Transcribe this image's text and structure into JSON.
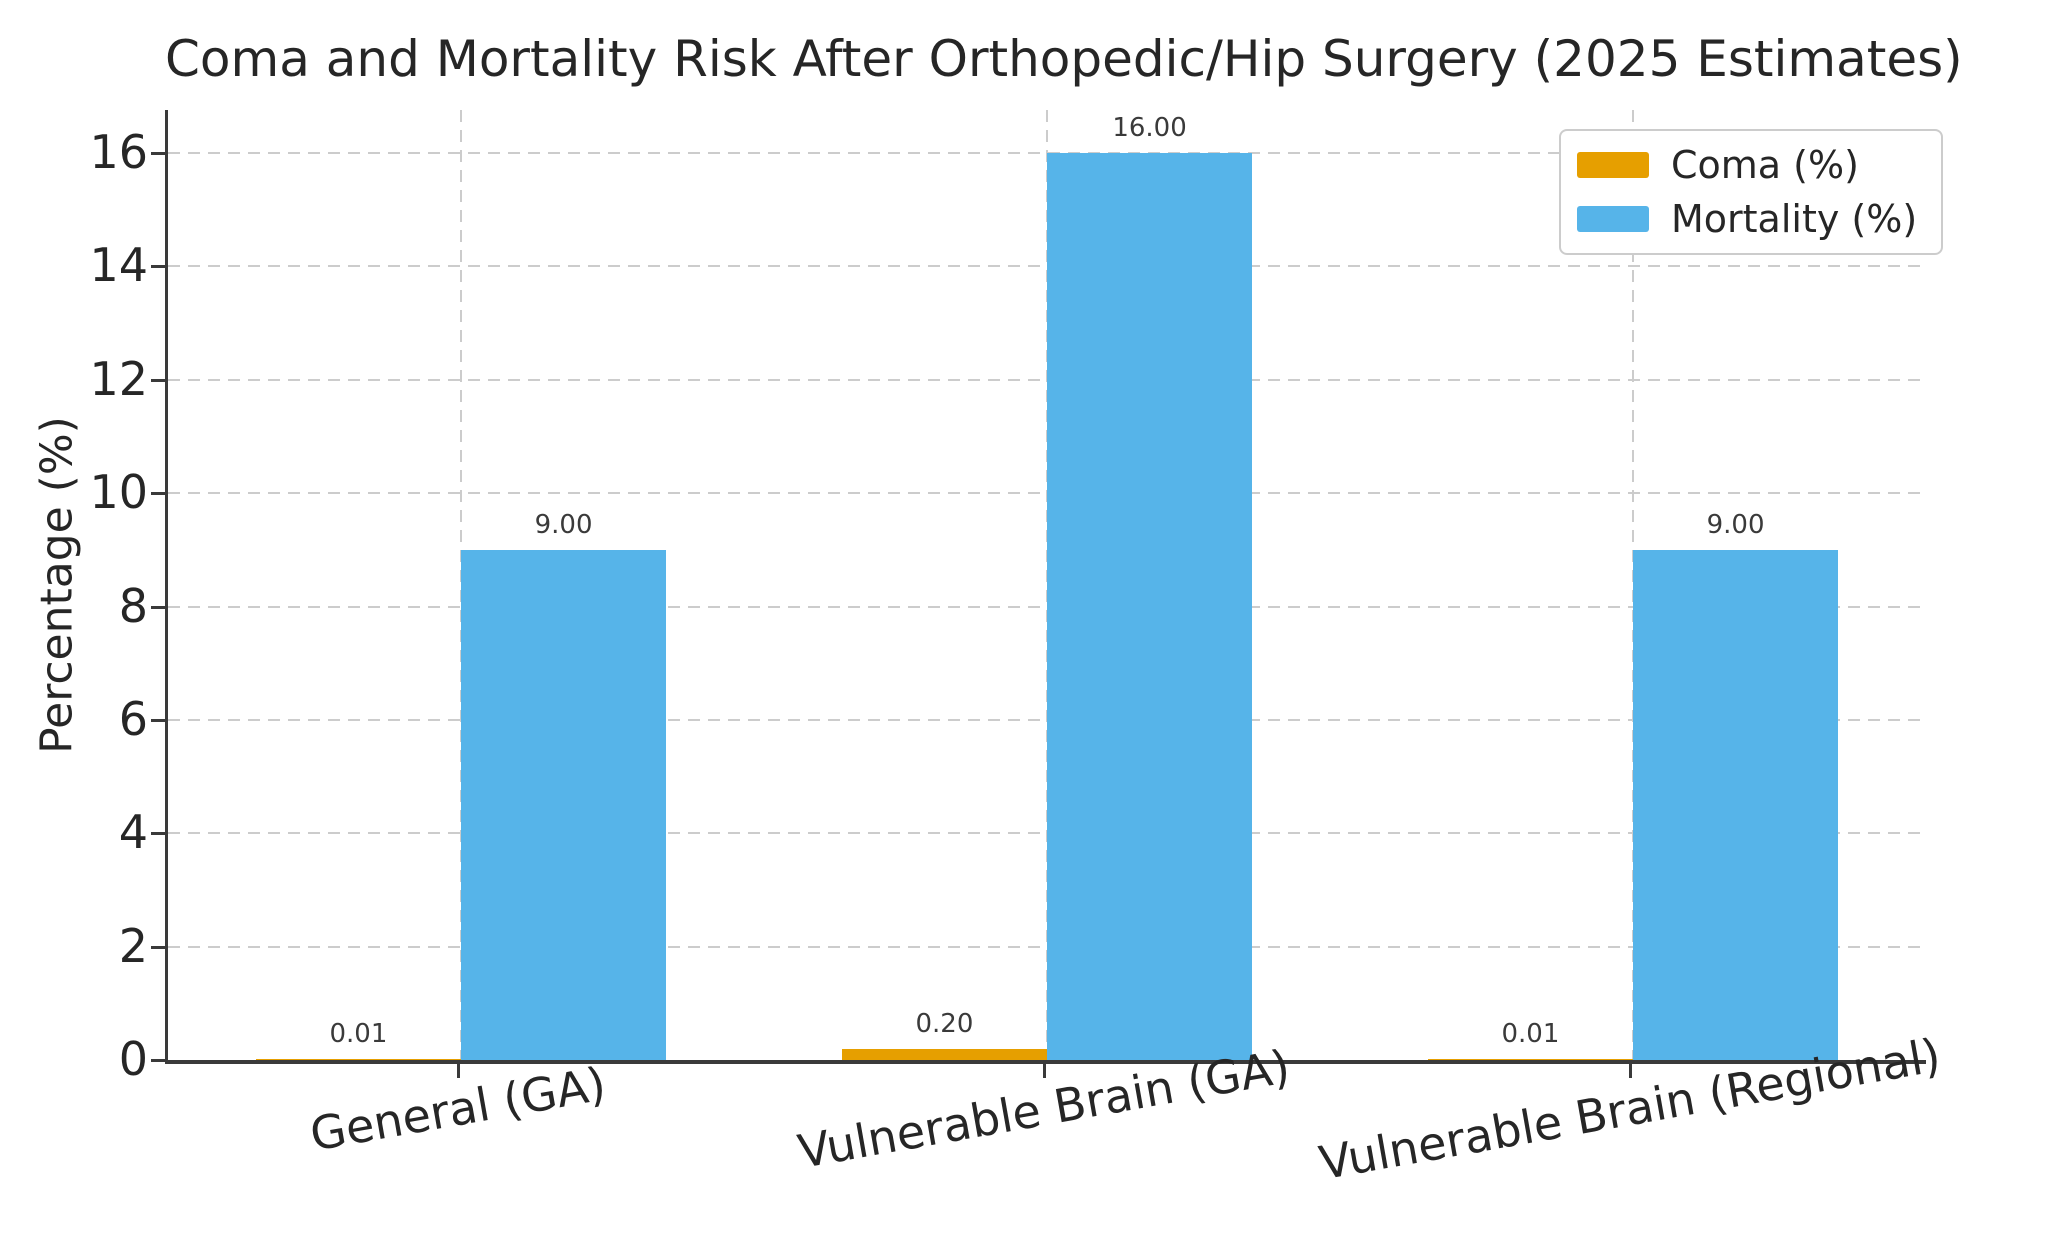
{
  "chart_data": {
    "type": "bar",
    "title": "Coma and Mortality Risk After Orthopedic/Hip Surgery (2025 Estimates)",
    "ylabel": "Percentage (%)",
    "xlabel": "",
    "categories": [
      "General (GA)",
      "Vulnerable Brain (GA)",
      "Vulnerable Brain (Regional)"
    ],
    "series": [
      {
        "name": "Coma (%)",
        "color": "#E69F00",
        "values": [
          0.01,
          0.2,
          0.01
        ],
        "value_labels": [
          "0.01",
          "0.20",
          "0.01"
        ]
      },
      {
        "name": "Mortality (%)",
        "color": "#56B4E9",
        "values": [
          9.0,
          16.0,
          9.0
        ],
        "value_labels": [
          "9.00",
          "16.00",
          "9.00"
        ]
      }
    ],
    "yticks": [
      0,
      2,
      4,
      6,
      8,
      10,
      12,
      14,
      16
    ],
    "ylim": [
      0,
      16.76
    ],
    "grid": true,
    "grid_style": "dashed",
    "legend_position": "upper right",
    "x_tick_rotation_deg": -10,
    "bar_width_fraction": 0.35
  },
  "colors": {
    "background": "#ffffff",
    "spine": "#3a3a3a",
    "grid": "#cccccc",
    "text": "#262626",
    "value_label_text": "#3a3a3a",
    "legend_border": "#cccccc"
  }
}
